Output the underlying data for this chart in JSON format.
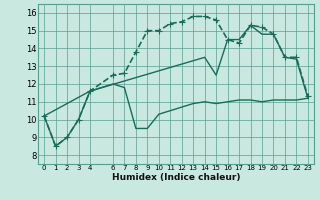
{
  "title": "",
  "xlabel": "Humidex (Indice chaleur)",
  "bg_color": "#c8e8e0",
  "grid_color": "#5a9e90",
  "line_color": "#1a6b5a",
  "xlim": [
    -0.5,
    23.5
  ],
  "ylim": [
    7.5,
    16.5
  ],
  "xticks": [
    0,
    1,
    2,
    3,
    4,
    6,
    7,
    8,
    9,
    10,
    11,
    12,
    13,
    14,
    15,
    16,
    17,
    18,
    19,
    20,
    21,
    22,
    23
  ],
  "yticks": [
    8,
    9,
    10,
    11,
    12,
    13,
    14,
    15,
    16
  ],
  "series": [
    {
      "x": [
        0,
        1,
        2,
        3,
        4,
        6,
        7,
        8,
        9,
        10,
        11,
        12,
        13,
        14,
        15,
        16,
        17,
        18,
        19,
        20,
        21,
        22,
        23
      ],
      "y": [
        10.2,
        8.5,
        9.0,
        10.0,
        11.6,
        12.0,
        11.8,
        9.5,
        9.5,
        10.3,
        10.5,
        10.7,
        10.9,
        11.0,
        10.9,
        11.0,
        11.1,
        11.1,
        11.0,
        11.1,
        11.1,
        11.1,
        11.2
      ],
      "marker": null,
      "markersize": 0,
      "linewidth": 1.0,
      "style": "solid"
    },
    {
      "x": [
        0,
        4,
        14,
        15,
        16,
        17,
        18,
        19,
        20,
        21,
        22,
        23
      ],
      "y": [
        10.2,
        11.6,
        13.5,
        12.5,
        14.5,
        14.5,
        15.3,
        14.8,
        14.8,
        13.5,
        13.4,
        11.2
      ],
      "marker": null,
      "markersize": 0,
      "linewidth": 1.0,
      "style": "solid"
    },
    {
      "x": [
        0,
        1,
        2,
        3,
        4,
        6,
        7,
        8,
        9,
        10,
        11,
        12,
        13,
        14,
        15,
        16,
        17,
        18,
        19,
        20,
        21,
        22,
        23
      ],
      "y": [
        10.2,
        8.5,
        9.0,
        10.0,
        11.6,
        12.5,
        12.6,
        13.8,
        15.0,
        15.0,
        15.4,
        15.5,
        15.8,
        15.8,
        15.6,
        14.5,
        14.3,
        15.3,
        15.2,
        14.8,
        13.5,
        13.5,
        11.3
      ],
      "marker": "+",
      "markersize": 4,
      "linewidth": 1.2,
      "style": "dotted"
    }
  ]
}
